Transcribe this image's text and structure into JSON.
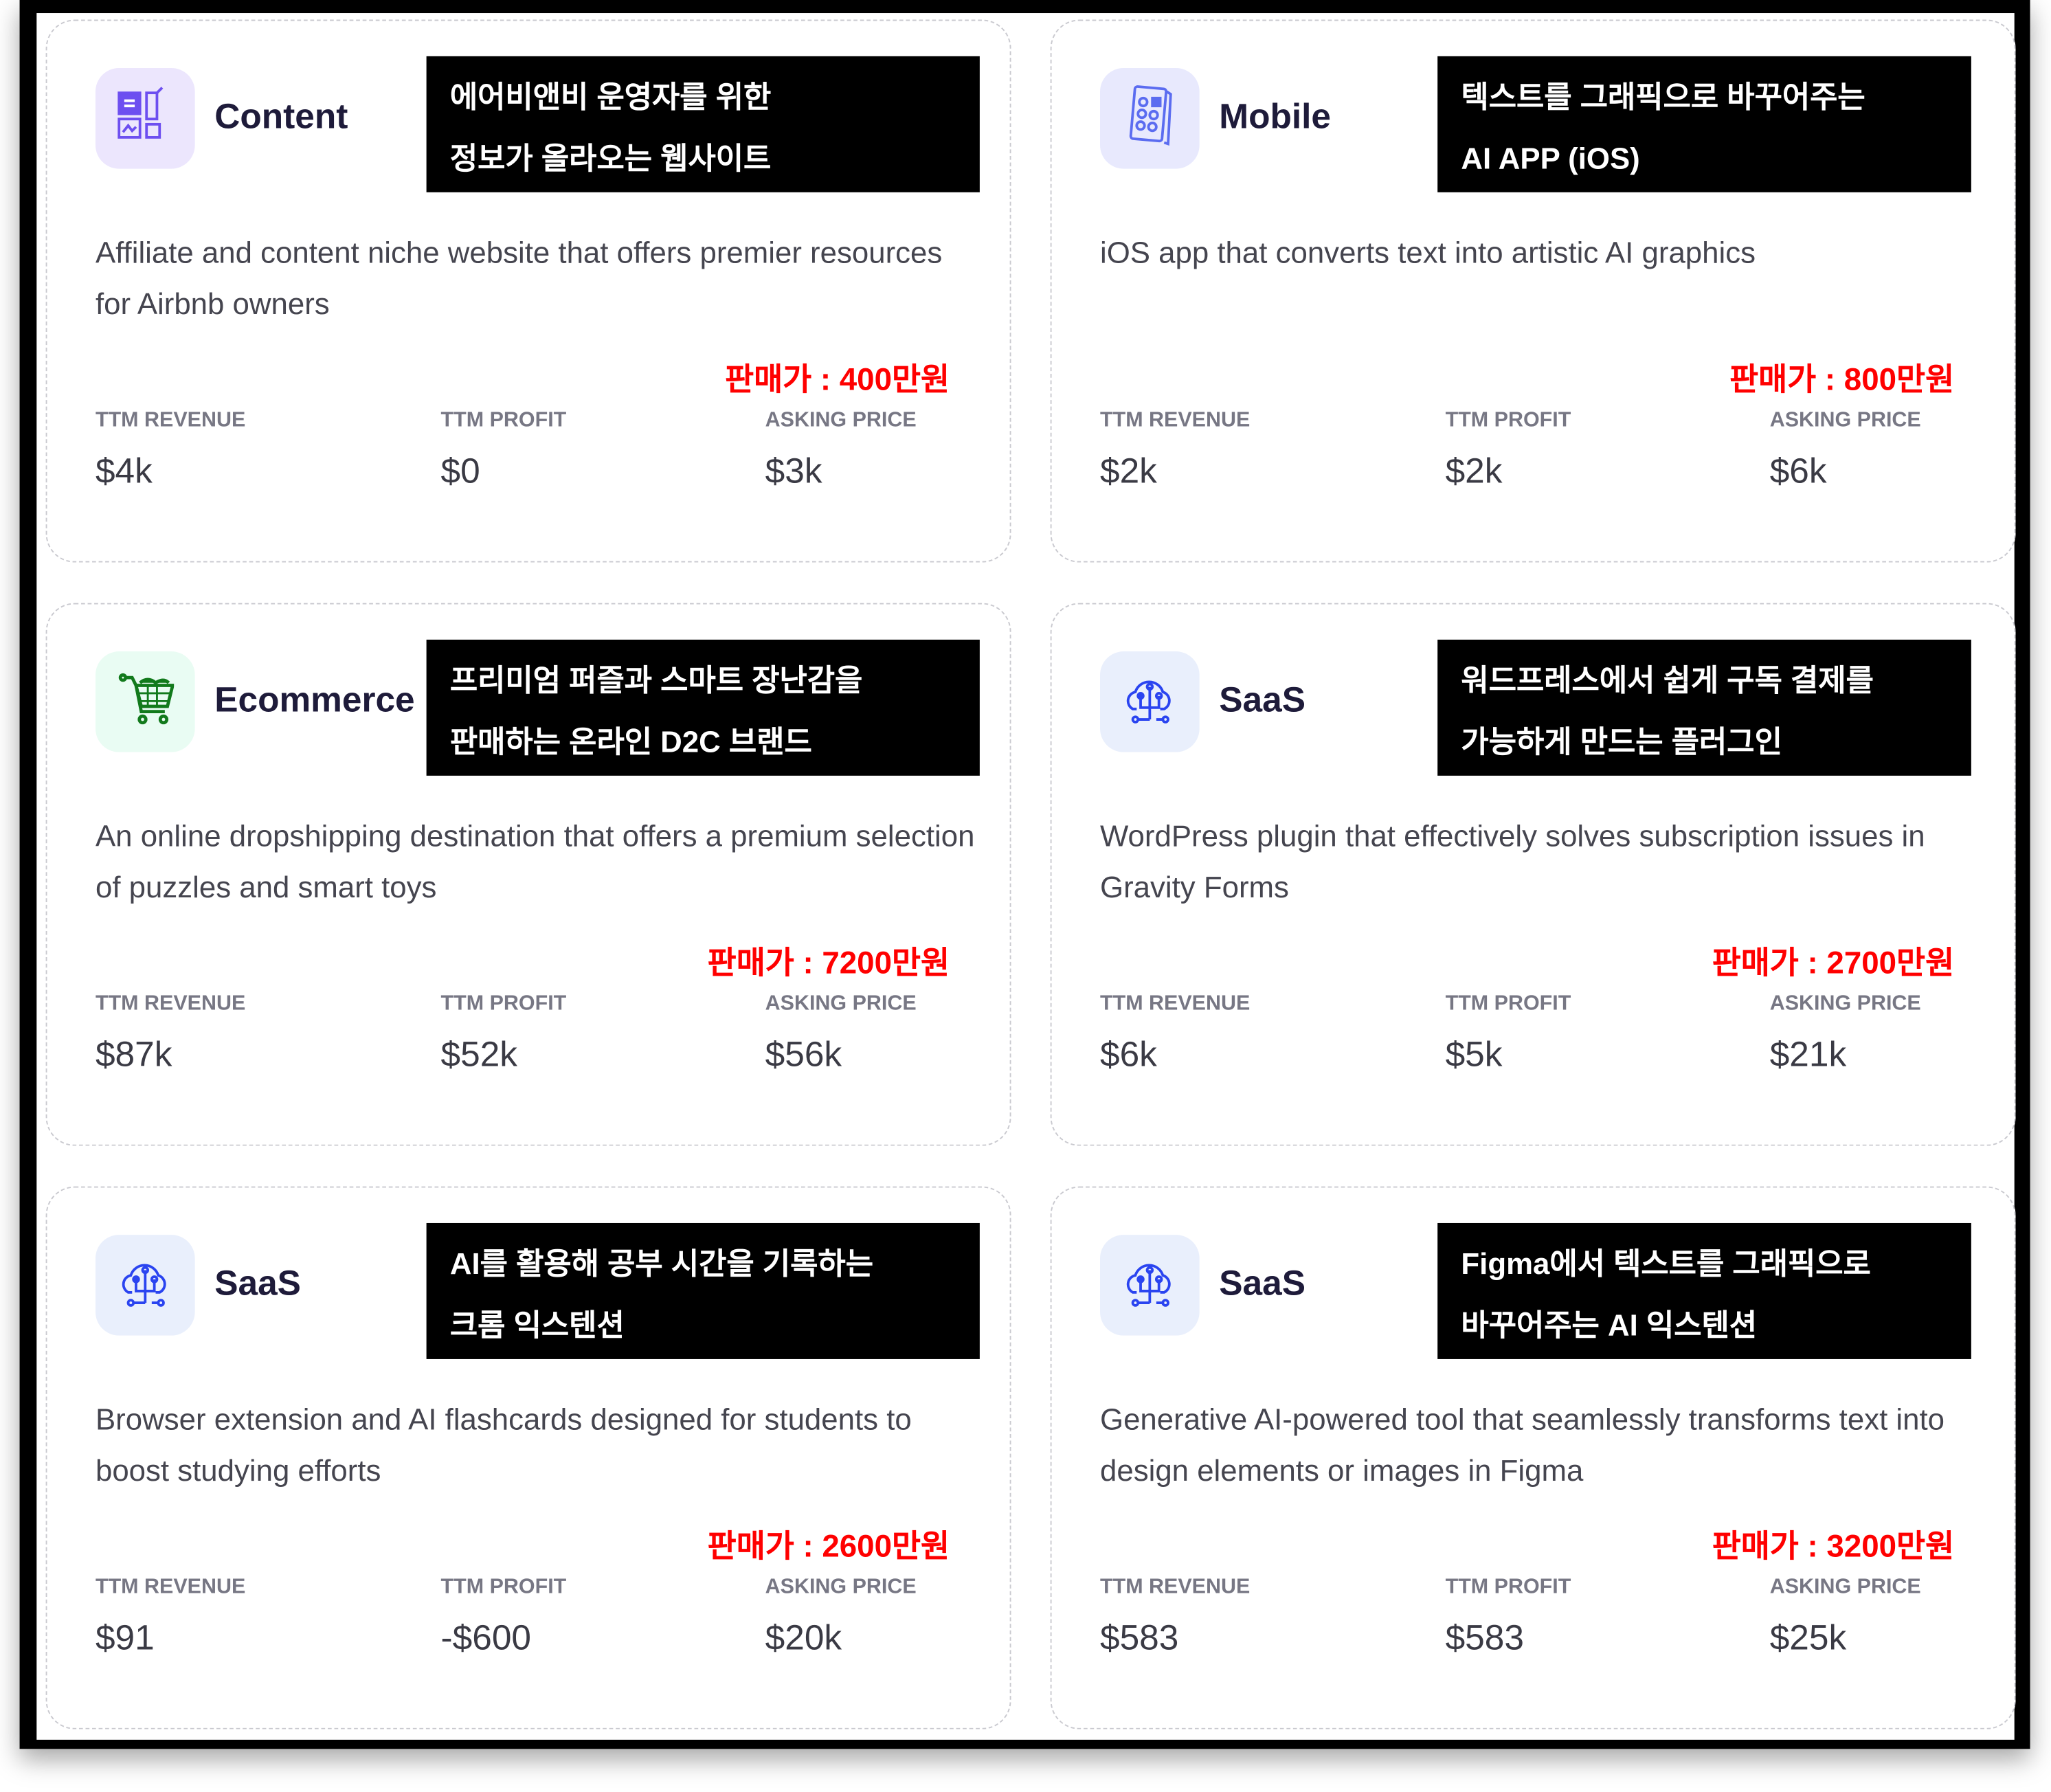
{
  "labels": {
    "revenue": "TTM REVENUE",
    "profit": "TTM PROFIT",
    "asking": "ASKING PRICE"
  },
  "cards": [
    {
      "category": "Content",
      "icon": "content-layout-icon",
      "icon_bg": "#ece6fd",
      "icon_color": "#6d4ff0",
      "korean": [
        "에어비앤비 운영자를 위한",
        "정보가 올라오는 웹사이트"
      ],
      "description": "Affiliate and content niche website that offers premier resources for Airbnb owners",
      "price": "판매가 : 400만원",
      "revenue": "$4k",
      "profit": "$0",
      "asking": "$3k"
    },
    {
      "category": "Mobile",
      "icon": "mobile-phone-icon",
      "icon_bg": "#e8e9fd",
      "icon_color": "#5b6cf0",
      "korean": [
        "텍스트를 그래픽으로 바꾸어주는",
        "AI APP (iOS)"
      ],
      "description": "iOS app that converts text into artistic AI graphics",
      "price": "판매가 : 800만원",
      "revenue": "$2k",
      "profit": "$2k",
      "asking": "$6k"
    },
    {
      "category": "Ecommerce",
      "icon": "shopping-cart-icon",
      "icon_bg": "#e9fcf3",
      "icon_color": "#127a1c",
      "korean": [
        "프리미엄 퍼즐과 스마트 장난감을",
        "판매하는 온라인 D2C 브랜드"
      ],
      "description": "An online dropshipping destination that offers a premium selection of puzzles and smart toys",
      "price": "판매가 : 7200만원",
      "revenue": "$87k",
      "profit": "$52k",
      "asking": "$56k"
    },
    {
      "category": "SaaS",
      "icon": "cloud-network-icon",
      "icon_bg": "#e9effc",
      "icon_color": "#2a44f0",
      "korean": [
        "워드프레스에서 쉽게 구독 결제를",
        "가능하게 만드는 플러그인"
      ],
      "description": "WordPress plugin that effectively solves subscription issues in Gravity Forms",
      "price": "판매가 : 2700만원",
      "revenue": "$6k",
      "profit": "$5k",
      "asking": "$21k"
    },
    {
      "category": "SaaS",
      "icon": "cloud-network-icon",
      "icon_bg": "#e9effc",
      "icon_color": "#2a44f0",
      "korean": [
        "AI를 활용해 공부 시간을 기록하는",
        "크롬 익스텐션"
      ],
      "description": "Browser extension and AI flashcards designed for students to boost studying efforts",
      "price": "판매가 : 2600만원",
      "revenue": "$91",
      "profit": "-$600",
      "asking": "$20k"
    },
    {
      "category": "SaaS",
      "icon": "cloud-network-icon",
      "icon_bg": "#e9effc",
      "icon_color": "#2a44f0",
      "korean": [
        "Figma에서 텍스트를 그래픽으로",
        "바꾸어주는 AI 익스텐션"
      ],
      "description": "Generative AI-powered tool that seamlessly transforms text into design elements or images in Figma",
      "price": "판매가 : 3200만원",
      "revenue": "$583",
      "profit": "$583",
      "asking": "$25k"
    }
  ]
}
